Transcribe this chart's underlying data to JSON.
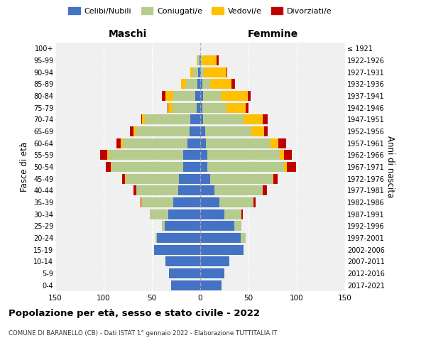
{
  "age_groups": [
    "0-4",
    "5-9",
    "10-14",
    "15-19",
    "20-24",
    "25-29",
    "30-34",
    "35-39",
    "40-44",
    "45-49",
    "50-54",
    "55-59",
    "60-64",
    "65-69",
    "70-74",
    "75-79",
    "80-84",
    "85-89",
    "90-94",
    "95-99",
    "100+"
  ],
  "birth_years": [
    "2017-2021",
    "2012-2016",
    "2007-2011",
    "2002-2006",
    "1997-2001",
    "1992-1996",
    "1987-1991",
    "1982-1986",
    "1977-1981",
    "1972-1976",
    "1967-1971",
    "1962-1966",
    "1957-1961",
    "1952-1956",
    "1947-1951",
    "1942-1946",
    "1937-1941",
    "1932-1936",
    "1927-1931",
    "1922-1926",
    "≤ 1921"
  ],
  "maschi": {
    "celibi": [
      30,
      32,
      36,
      48,
      45,
      37,
      33,
      28,
      23,
      22,
      18,
      18,
      13,
      11,
      10,
      4,
      5,
      3,
      2,
      1,
      0
    ],
    "coniugati": [
      0,
      0,
      0,
      0,
      1,
      3,
      19,
      32,
      43,
      55,
      74,
      77,
      67,
      56,
      47,
      25,
      23,
      12,
      5,
      2,
      0
    ],
    "vedovi": [
      0,
      0,
      0,
      0,
      0,
      0,
      0,
      1,
      0,
      1,
      1,
      1,
      2,
      2,
      3,
      4,
      8,
      5,
      3,
      1,
      0
    ],
    "divorziati": [
      0,
      0,
      0,
      0,
      0,
      0,
      0,
      1,
      3,
      3,
      5,
      8,
      5,
      4,
      1,
      1,
      4,
      0,
      0,
      0,
      0
    ]
  },
  "femmine": {
    "nubili": [
      22,
      25,
      30,
      45,
      42,
      35,
      25,
      20,
      15,
      10,
      7,
      7,
      6,
      5,
      3,
      2,
      3,
      2,
      1,
      1,
      0
    ],
    "coniugate": [
      0,
      0,
      0,
      0,
      5,
      8,
      18,
      35,
      50,
      65,
      80,
      75,
      67,
      48,
      42,
      25,
      18,
      8,
      3,
      1,
      0
    ],
    "vedove": [
      0,
      0,
      0,
      0,
      0,
      0,
      0,
      0,
      0,
      1,
      3,
      5,
      8,
      13,
      20,
      20,
      28,
      22,
      23,
      15,
      0
    ],
    "divorziate": [
      0,
      0,
      0,
      0,
      0,
      0,
      1,
      2,
      4,
      4,
      9,
      8,
      8,
      4,
      5,
      3,
      3,
      4,
      1,
      2,
      0
    ]
  },
  "colors": {
    "celibi_nubili": "#4472c4",
    "coniugati": "#b5cc8e",
    "vedovi": "#ffc000",
    "divorziati": "#c00000"
  },
  "title": "Popolazione per età, sesso e stato civile - 2022",
  "subtitle": "COMUNE DI BARANELLO (CB) - Dati ISTAT 1° gennaio 2022 - Elaborazione TUTTITALIA.IT",
  "xlabel_left": "Maschi",
  "xlabel_right": "Femmine",
  "ylabel": "Fasce di età",
  "ylabel_right": "Anni di nascita",
  "xlim": 150,
  "bg_color": "#f0f0f0"
}
